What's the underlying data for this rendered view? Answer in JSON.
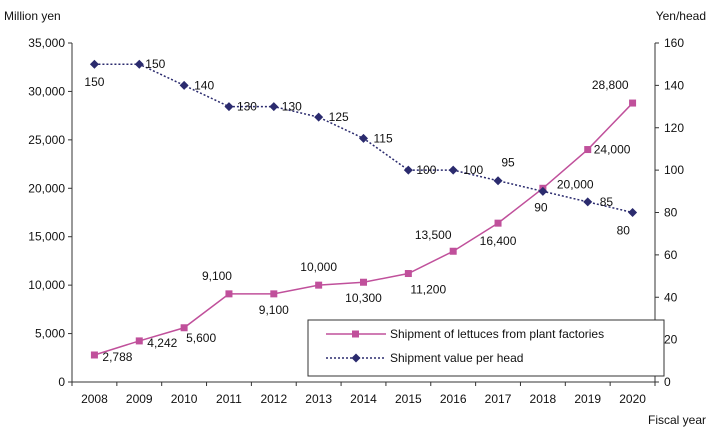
{
  "chart_data": {
    "type": "line",
    "y_left_label": "Million yen",
    "y_right_label": "Yen/head",
    "x_label": "Fiscal year",
    "categories": [
      "2008",
      "2009",
      "2010",
      "2011",
      "2012",
      "2013",
      "2014",
      "2015",
      "2016",
      "2017",
      "2018",
      "2019",
      "2020"
    ],
    "y_left_range": [
      0,
      35000
    ],
    "y_left_ticks": [
      "0",
      "5,000",
      "10,000",
      "15,000",
      "20,000",
      "25,000",
      "30,000",
      "35,000"
    ],
    "y_right_range": [
      0,
      160
    ],
    "y_right_ticks": [
      "0",
      "20",
      "40",
      "60",
      "80",
      "100",
      "120",
      "140",
      "160"
    ],
    "grid": false,
    "legend_position": "bottom-right",
    "series": [
      {
        "name": "Shipment of lettuces from plant factories",
        "axis": "left",
        "color": "#c0509b",
        "marker": "square",
        "line_style": "solid",
        "values": [
          2788,
          4242,
          5600,
          9100,
          9100,
          10000,
          10300,
          11200,
          13500,
          16400,
          20000,
          24000,
          28800
        ],
        "labels": [
          "2,788",
          "4,242",
          "5,600",
          "9,100",
          "9,100",
          "10,000",
          "10,300",
          "11,200",
          "13,500",
          "16,400",
          "20,000",
          "24,000",
          "28,800"
        ]
      },
      {
        "name": "Shipment value per head",
        "axis": "right",
        "color": "#2b2b6e",
        "marker": "diamond",
        "line_style": "dotted",
        "values": [
          150,
          150,
          140,
          130,
          130,
          125,
          115,
          100,
          100,
          95,
          90,
          85,
          80
        ],
        "labels": [
          "150",
          "150",
          "140",
          "130",
          "130",
          "125",
          "115",
          "100",
          "100",
          "95",
          "90",
          "85",
          "80"
        ]
      }
    ]
  }
}
